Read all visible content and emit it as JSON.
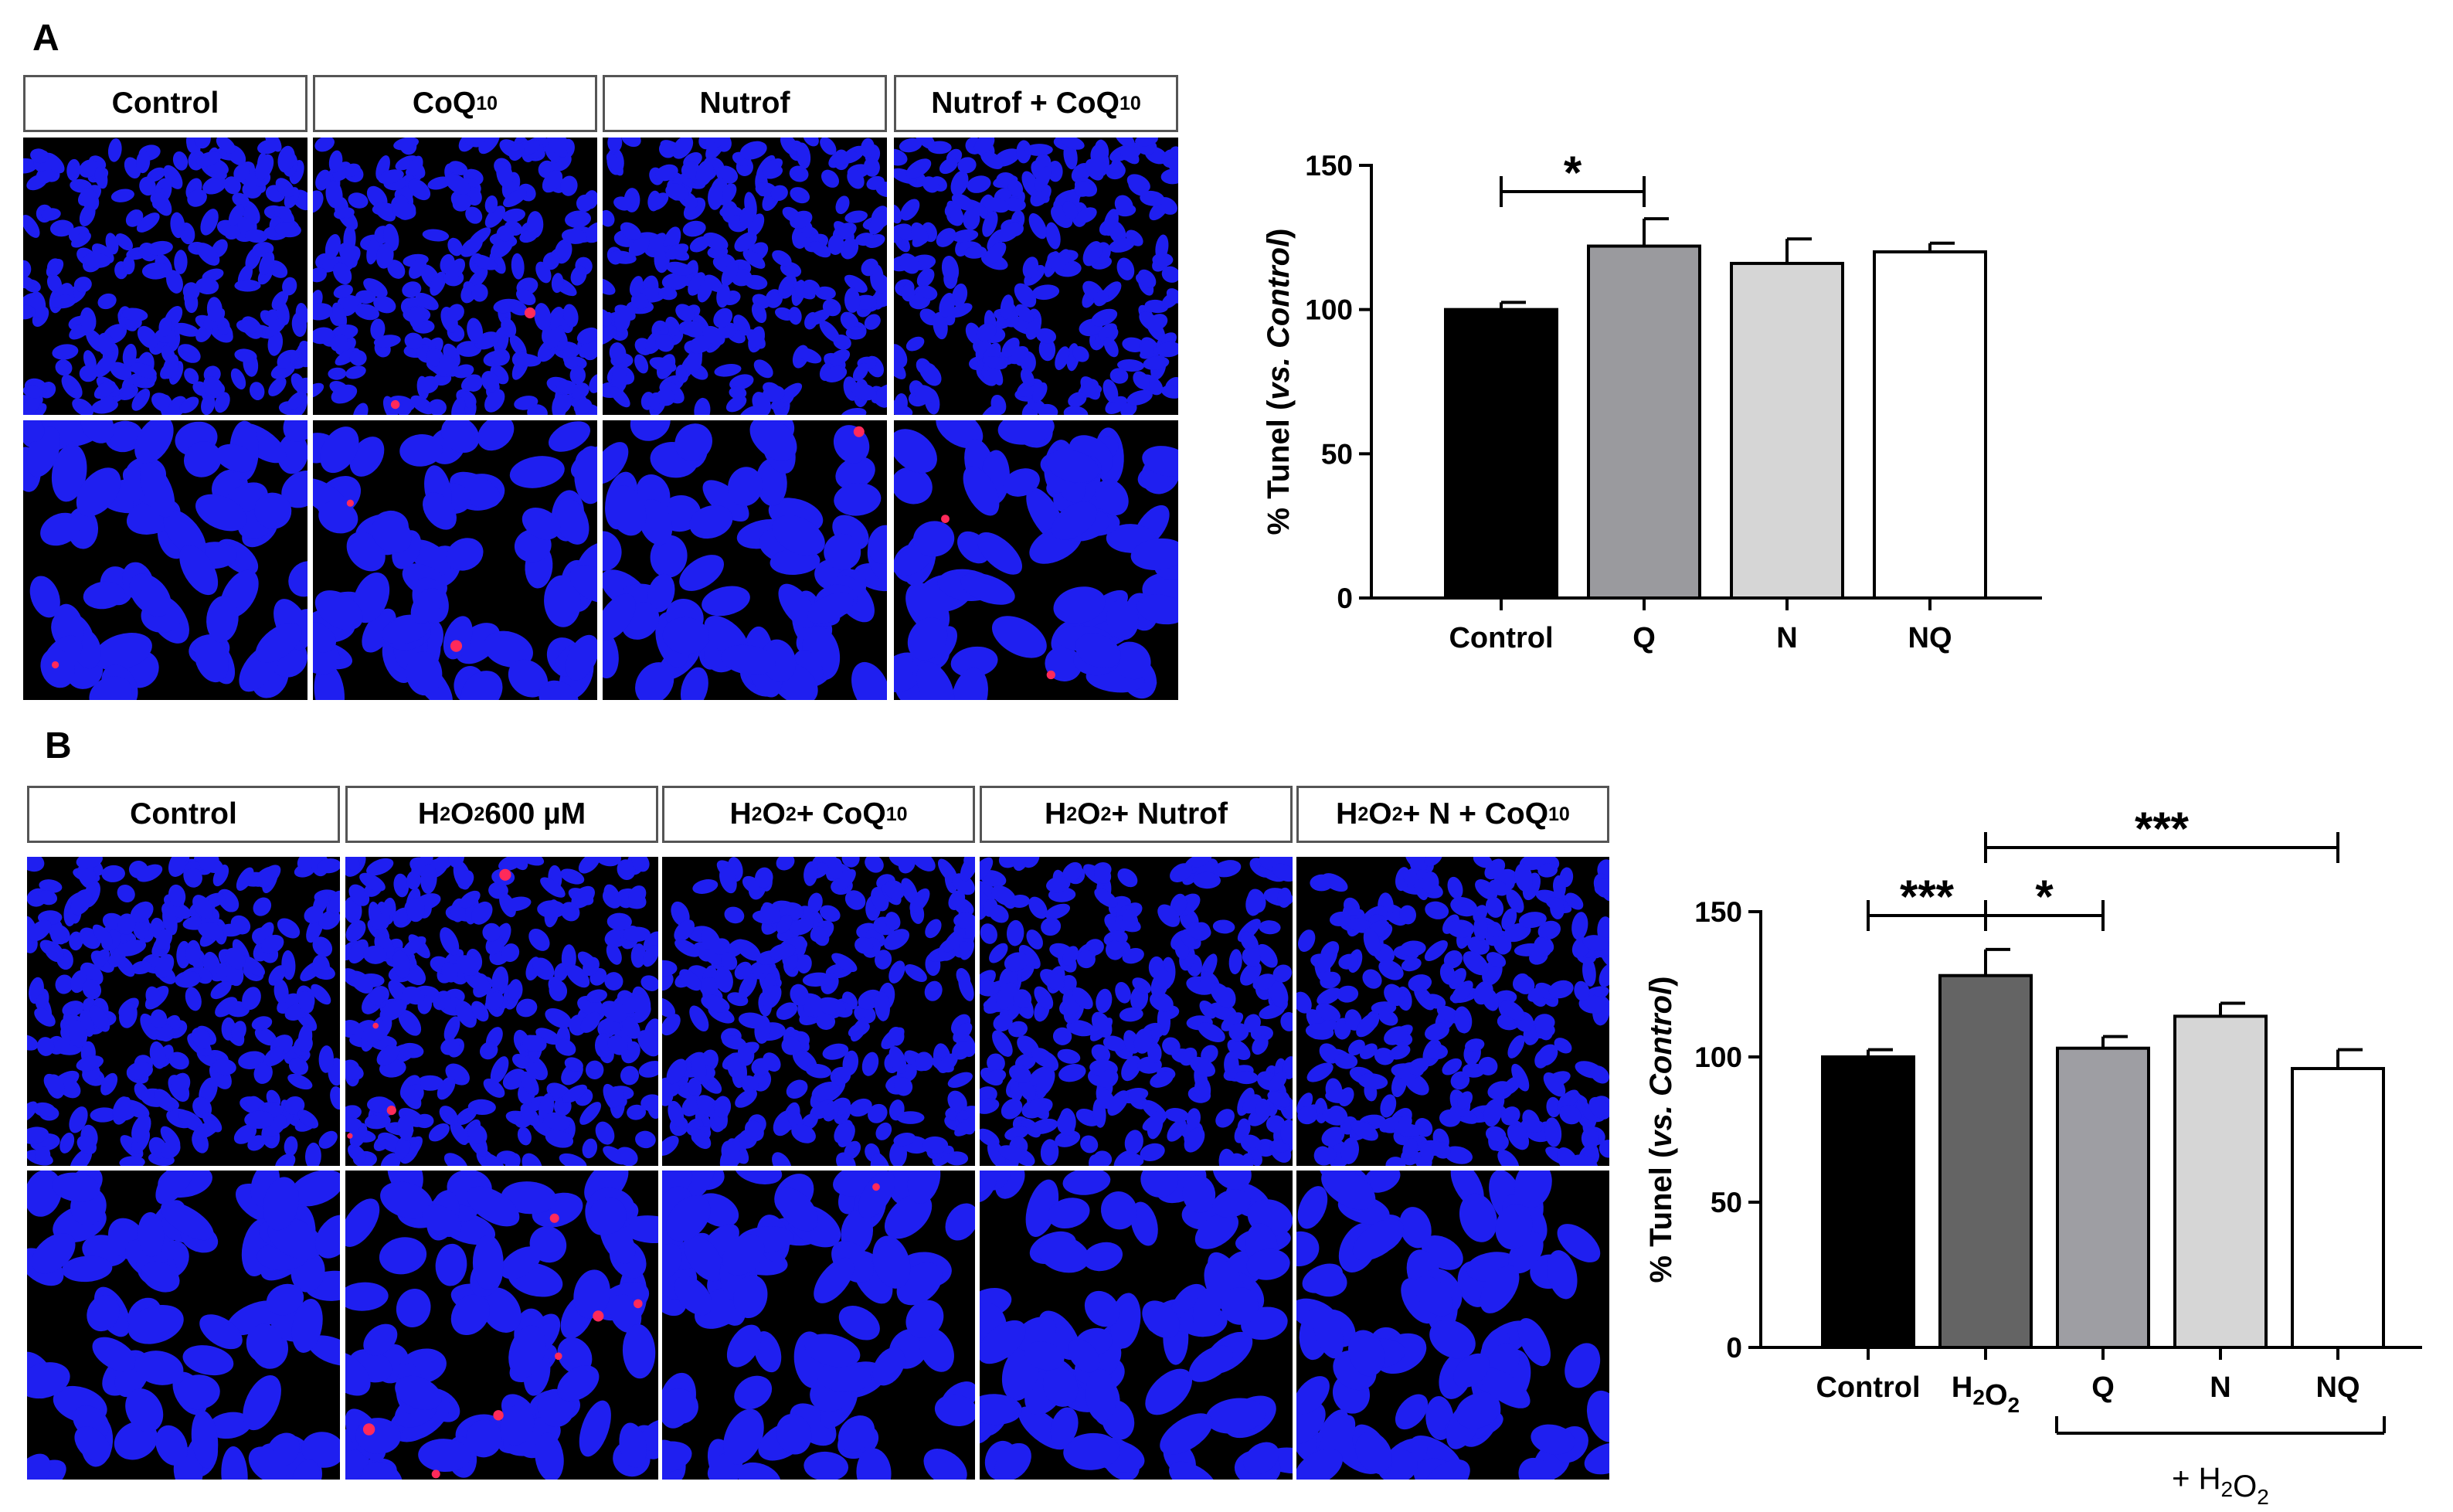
{
  "panels": [
    {
      "letter": "A",
      "image_labels": [
        {
          "text": "Control",
          "base": "Control",
          "sub": ""
        },
        {
          "text": "CoQ10",
          "base": "CoQ",
          "sub": "10"
        },
        {
          "text": "Nutrof",
          "base": "Nutrof",
          "sub": ""
        },
        {
          "text": "Nutrof + CoQ10",
          "base": "Nutrof + CoQ",
          "sub": "10"
        }
      ]
    },
    {
      "letter": "B",
      "image_labels": [
        {
          "text": "Control",
          "parts": [
            [
              "Control",
              ""
            ]
          ]
        },
        {
          "text": "H2O2 600 µM",
          "parts": [
            [
              "H",
              "2"
            ],
            [
              "O",
              "2"
            ],
            [
              " 600 µM",
              ""
            ]
          ]
        },
        {
          "text": "H2O2 + CoQ10",
          "parts": [
            [
              "H",
              "2"
            ],
            [
              "O",
              "2"
            ],
            [
              " + CoQ",
              "10"
            ]
          ]
        },
        {
          "text": "H2O2 + Nutrof",
          "parts": [
            [
              "H",
              "2"
            ],
            [
              "O",
              "2"
            ],
            [
              " + Nutrof",
              ""
            ]
          ]
        },
        {
          "text": "H2O2+ N + CoQ10",
          "parts": [
            [
              "H",
              "2"
            ],
            [
              "O",
              "2"
            ],
            [
              "+ N + CoQ",
              "10"
            ]
          ]
        }
      ]
    }
  ],
  "chart_data": [
    {
      "type": "bar",
      "panel": "A",
      "categories": [
        "Control",
        "Q",
        "N",
        "NQ"
      ],
      "values": [
        100,
        122,
        116,
        120
      ],
      "errors": [
        2.5,
        9.5,
        8.5,
        3
      ],
      "colors": [
        "#000000",
        "#9a9a9e",
        "#d6d6d6",
        "#ffffff"
      ],
      "ylabel": "% Tunel (vs. Control)",
      "ylabel_parts": [
        "% Tunel (",
        "vs. Control",
        ")"
      ],
      "ylim": [
        0,
        150
      ],
      "yticks": [
        0,
        50,
        100,
        150
      ],
      "significance": [
        {
          "from": 0,
          "to": 1,
          "label": "*"
        }
      ]
    },
    {
      "type": "bar",
      "panel": "B",
      "categories": [
        "Control",
        "H2O2",
        "Q",
        "N",
        "NQ"
      ],
      "category_display": [
        [
          [
            "Control",
            ""
          ]
        ],
        [
          [
            "H",
            "2"
          ],
          [
            "O",
            "2"
          ]
        ],
        [
          [
            "Q",
            ""
          ]
        ],
        [
          [
            "N",
            ""
          ]
        ],
        [
          [
            "NQ",
            ""
          ]
        ]
      ],
      "values": [
        100,
        128,
        103,
        114,
        96
      ],
      "errors": [
        2.5,
        9,
        4,
        4.5,
        6.5
      ],
      "colors": [
        "#000000",
        "#646464",
        "#9e9ea3",
        "#d6d6d6",
        "#ffffff"
      ],
      "ylabel": "% Tunel (vs. Control)",
      "ylabel_parts": [
        "% Tunel (",
        "vs. Control",
        ")"
      ],
      "ylim": [
        0,
        150
      ],
      "yticks": [
        0,
        50,
        100,
        150
      ],
      "significance": [
        {
          "from": 0,
          "to": 1,
          "label": "***"
        },
        {
          "from": 1,
          "to": 2,
          "label": "*"
        },
        {
          "from": 1,
          "to": 4,
          "label": "***"
        }
      ],
      "group_bracket": {
        "from": 2,
        "to": 4,
        "label": "+ H2O2",
        "parts": [
          [
            "+ H",
            "2"
          ],
          [
            "O",
            "2"
          ]
        ]
      }
    }
  ]
}
